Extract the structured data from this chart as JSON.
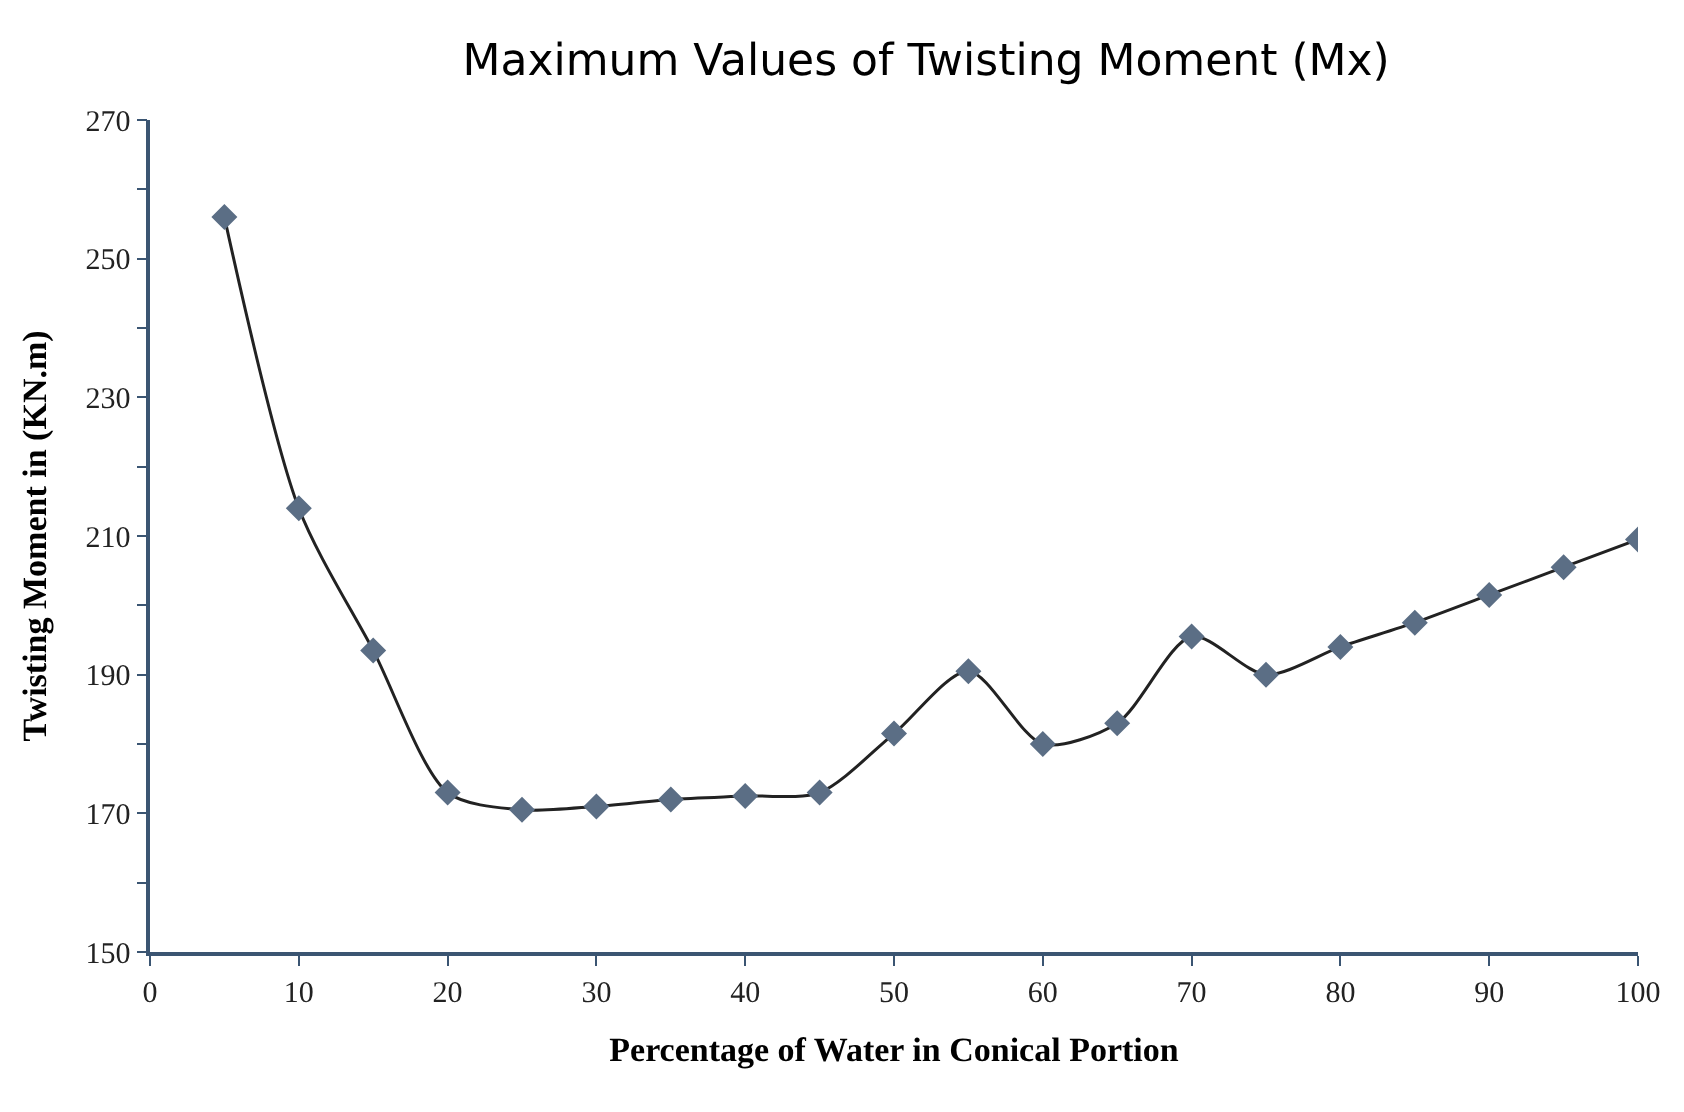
{
  "chart_data": {
    "type": "line",
    "title": "Maximum Values of Twisting Moment (Mx)",
    "xlabel": "Percentage of Water in Conical Portion",
    "ylabel": "Twisting Moment in (KN.m)",
    "x": [
      5,
      10,
      15,
      20,
      25,
      30,
      35,
      40,
      45,
      50,
      55,
      60,
      65,
      70,
      75,
      80,
      85,
      90,
      95,
      100
    ],
    "series": [
      {
        "color": "#5b6e85",
        "values": [
          256,
          214,
          193.5,
          173,
          170.5,
          171,
          172,
          172.5,
          173,
          181.5,
          190.5,
          180,
          183,
          195.5,
          190,
          194,
          197.5,
          201.5,
          205.5,
          209.5
        ]
      }
    ],
    "xlim": [
      0,
      100
    ],
    "xticks": [
      0,
      10,
      20,
      30,
      40,
      50,
      60,
      70,
      80,
      90,
      100
    ],
    "ylim": [
      150,
      270
    ],
    "yticks": [
      150,
      {
        "value": 160,
        "label": null
      },
      170,
      {
        "value": 180,
        "label": null
      },
      190,
      {
        "value": 200,
        "label": null
      },
      210,
      {
        "value": 220,
        "label": null
      },
      230,
      {
        "value": 240,
        "label": null
      },
      250,
      {
        "value": 260,
        "label": null
      },
      270
    ],
    "marker": "diamond",
    "line_style": "solid"
  }
}
